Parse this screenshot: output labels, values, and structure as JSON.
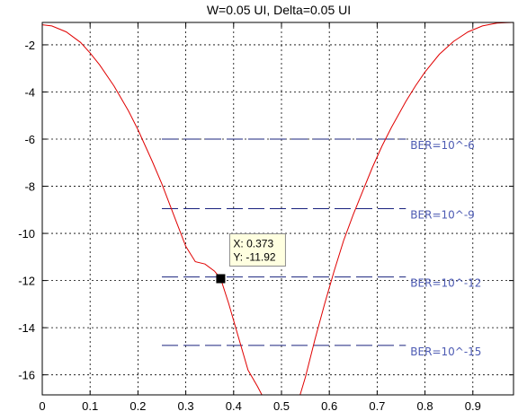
{
  "chart_data": {
    "type": "line",
    "title": "W=0.05 UI, Delta=0.05 UI",
    "xlabel": "",
    "ylabel": "",
    "xlim": [
      0,
      0.985
    ],
    "ylim": [
      -16.85,
      -1.05
    ],
    "xticks": [
      0,
      0.1,
      0.2,
      0.3,
      0.4,
      0.5,
      0.6,
      0.7,
      0.8,
      0.9
    ],
    "xtick_labels": [
      "0",
      "0.1",
      "0.2",
      "0.3",
      "0.4",
      "0.5",
      "0.6",
      "0.7",
      "0.8",
      "0.9"
    ],
    "yticks": [
      -2,
      -4,
      -6,
      -8,
      -10,
      -12,
      -14,
      -16
    ],
    "ytick_labels": [
      "-2",
      "-4",
      "-6",
      "-8",
      "-10",
      "-12",
      "-14",
      "-16"
    ],
    "grid": true,
    "series": [
      {
        "color": "#e00000",
        "x": [
          0,
          0.02,
          0.05,
          0.08,
          0.1,
          0.12,
          0.15,
          0.18,
          0.2,
          0.23,
          0.25,
          0.28,
          0.3,
          0.32,
          0.34,
          0.36,
          0.373,
          0.39,
          0.41,
          0.43,
          0.45,
          0.459
        ],
        "y": [
          -1.15,
          -1.2,
          -1.45,
          -1.9,
          -2.35,
          -2.85,
          -3.75,
          -4.8,
          -5.6,
          -6.95,
          -7.9,
          -9.5,
          -10.55,
          -11.2,
          -11.3,
          -11.6,
          -11.92,
          -13.0,
          -14.4,
          -15.8,
          -16.5,
          -16.85
        ]
      },
      {
        "color": "#e00000",
        "x": [
          0.539,
          0.55,
          0.57,
          0.59,
          0.61,
          0.63,
          0.65,
          0.67,
          0.69,
          0.71,
          0.73,
          0.76,
          0.78,
          0.8,
          0.83,
          0.86,
          0.89,
          0.92,
          0.95,
          0.97,
          0.985
        ],
        "y": [
          -16.85,
          -16.1,
          -14.5,
          -13.0,
          -11.6,
          -10.3,
          -9.2,
          -8.2,
          -7.2,
          -6.3,
          -5.5,
          -4.4,
          -3.75,
          -3.15,
          -2.4,
          -1.85,
          -1.45,
          -1.2,
          -1.08,
          -1.06,
          -1.05
        ]
      }
    ],
    "reference_lines": [
      {
        "label": "BER=10^-6",
        "y": -6.0,
        "x": [
          0.25,
          0.76
        ]
      },
      {
        "label": "BER=10^-9",
        "y": -8.95,
        "x": [
          0.25,
          0.76
        ]
      },
      {
        "label": "BER=10^-12",
        "y": -11.85,
        "x": [
          0.25,
          0.76
        ]
      },
      {
        "label": "BER=10^-15",
        "y": -14.75,
        "x": [
          0.25,
          0.76
        ]
      }
    ],
    "datatip": {
      "x": 0.373,
      "y": -11.92,
      "x_text": "X: 0.373",
      "y_text": "Y: -11.92"
    }
  }
}
